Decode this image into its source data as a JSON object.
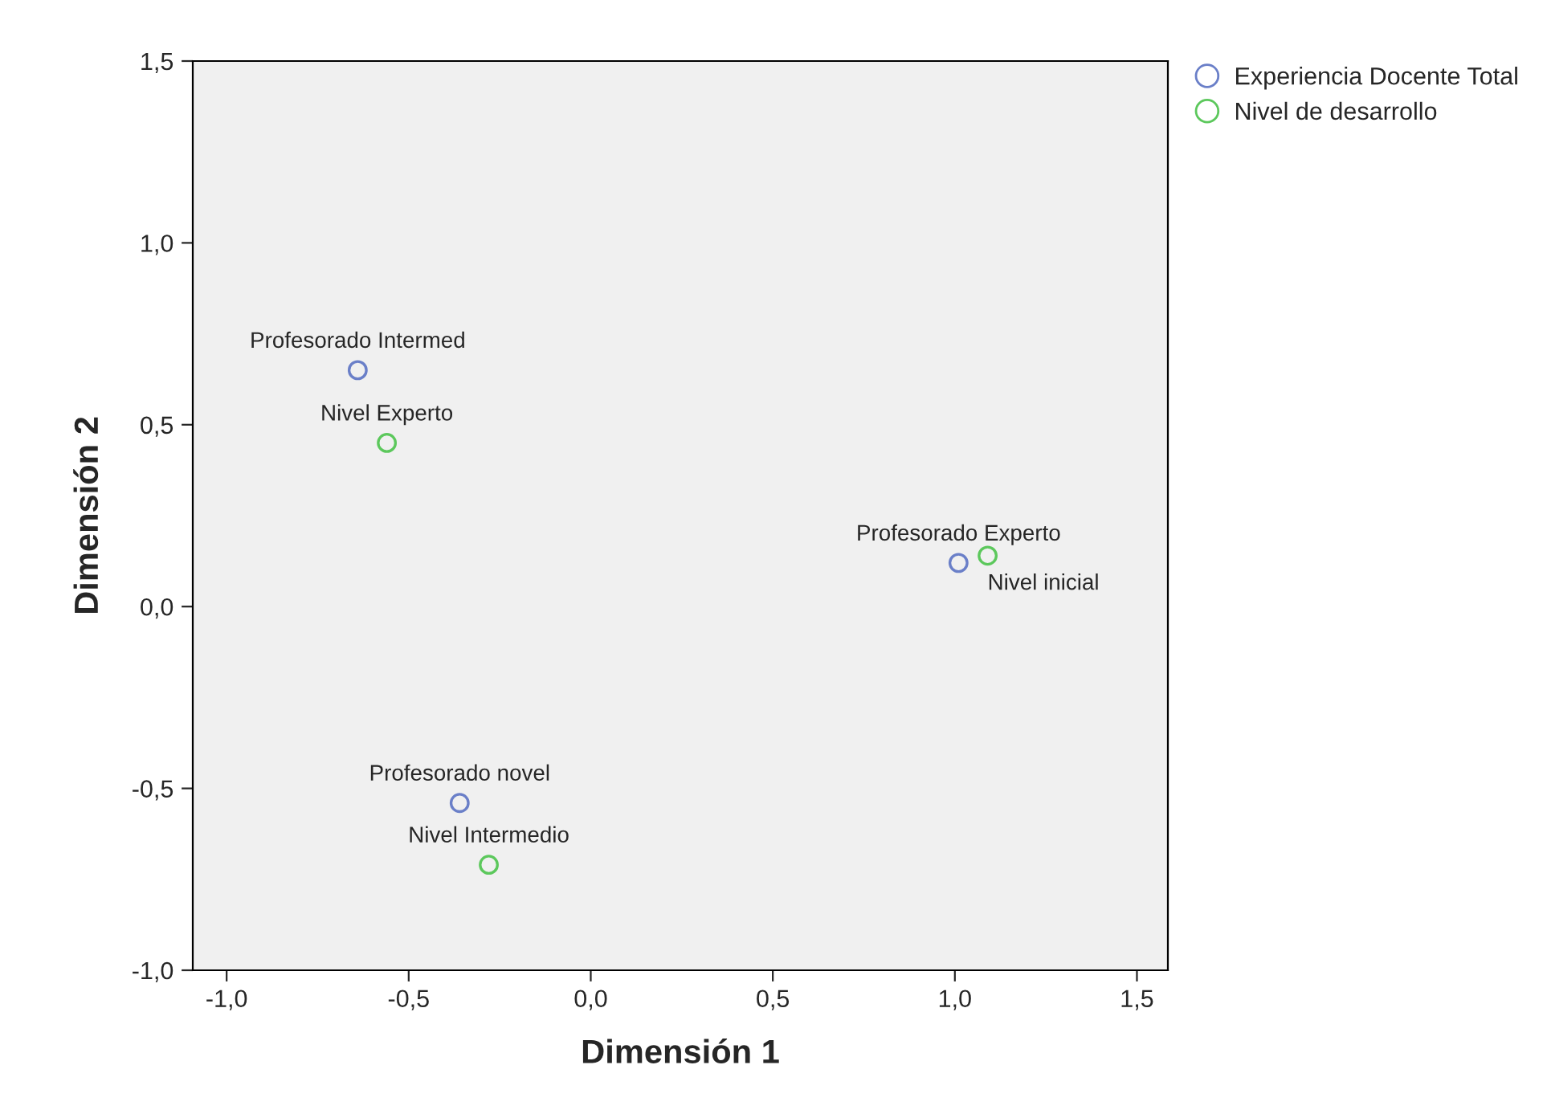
{
  "chart_data": {
    "type": "scatter",
    "xlabel": "Dimensión 1",
    "ylabel": "Dimensión 2",
    "xlim": [
      -1.093,
      1.585
    ],
    "ylim": [
      -1.0,
      1.5
    ],
    "xticks": [
      {
        "value": -1.0,
        "label": "-1,0"
      },
      {
        "value": -0.5,
        "label": "-0,5"
      },
      {
        "value": 0.0,
        "label": "0,0"
      },
      {
        "value": 0.5,
        "label": "0,5"
      },
      {
        "value": 1.0,
        "label": "1,0"
      },
      {
        "value": 1.5,
        "label": "1,5"
      }
    ],
    "yticks": [
      {
        "value": -1.0,
        "label": "-1,0"
      },
      {
        "value": -0.5,
        "label": "-0,5"
      },
      {
        "value": 0.0,
        "label": "0,0"
      },
      {
        "value": 0.5,
        "label": "0,5"
      },
      {
        "value": 1.0,
        "label": "1,0"
      },
      {
        "value": 1.5,
        "label": "1,5"
      }
    ],
    "series": [
      {
        "name": "Experiencia Docente Total",
        "color": "#6a7fc8",
        "x": [
          -0.64,
          1.01,
          -0.36
        ],
        "values": [
          0.65,
          0.12,
          -0.54
        ]
      },
      {
        "name": "Nivel de desarrollo",
        "color": "#5cc85c",
        "x": [
          -0.56,
          1.09,
          -0.28
        ],
        "values": [
          0.45,
          0.14,
          -0.71
        ]
      }
    ],
    "annotations": [
      {
        "text": "Profesorado Intermed",
        "x": -0.64,
        "y": 0.65
      },
      {
        "text": "Profesorado Experto",
        "x": 1.01,
        "y": 0.12
      },
      {
        "text": "Profesorado novel",
        "x": -0.36,
        "y": -0.54
      },
      {
        "text": "Nivel Experto",
        "x": -0.56,
        "y": 0.45
      },
      {
        "text": "Nivel inicial",
        "x": 1.09,
        "y": 0.14
      },
      {
        "text": "Nivel Intermedio",
        "x": -0.28,
        "y": -0.71
      }
    ],
    "marker": "circle",
    "grid": false,
    "legend": "top right"
  }
}
